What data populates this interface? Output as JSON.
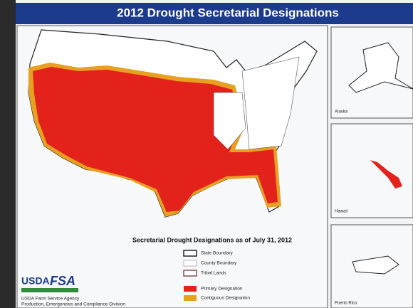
{
  "header": {
    "title": "2012 Drought Secretarial Designations"
  },
  "map": {
    "subtitle": "Secretarial Drought Designations as of July 31, 2012"
  },
  "legend": {
    "items": [
      "State Boundary",
      "County Boundary",
      "Tribal Lands",
      "Primary Designation",
      "Contiguous Designation"
    ]
  },
  "insets": [
    "Alaska",
    "Hawaii",
    "Puerto Rico"
  ],
  "agency": {
    "logo_left": "USDA",
    "logo_right": "FSA",
    "name": "USDA Farm Service Agency",
    "division": "Production, Emergencies and Compliance Division"
  }
}
